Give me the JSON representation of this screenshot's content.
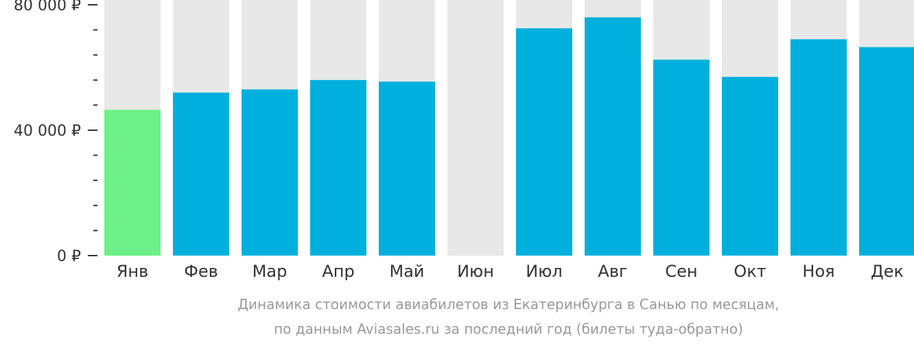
{
  "chart_data": {
    "type": "bar",
    "categories": [
      "Янв",
      "Фев",
      "Мар",
      "Апр",
      "Май",
      "Июн",
      "Июл",
      "Авг",
      "Сен",
      "Окт",
      "Ноя",
      "Дек"
    ],
    "values": [
      46500,
      52000,
      53000,
      56000,
      55500,
      null,
      72500,
      76000,
      62500,
      57000,
      69000,
      66500
    ],
    "ylim": [
      0,
      80000
    ],
    "yticks": [
      {
        "value": 0,
        "label": "0 ₽"
      },
      {
        "value": 40000,
        "label": "40 000 ₽"
      },
      {
        "value": 80000,
        "label": "80 000 ₽"
      }
    ],
    "minor_tick_step": 8000,
    "colors": {
      "bar": "#00b0dc",
      "cheapest_bar": "#6cf087",
      "background_bar": "#e8e8e8",
      "axis": "#333333"
    },
    "highlight_index": 0
  },
  "caption": {
    "line1": "Динамика стоимости авиабилетов из Екатеринбурга в Санью по месяцам,",
    "line2": "по данным Aviasales.ru за последний год (билеты туда-обратно)"
  }
}
